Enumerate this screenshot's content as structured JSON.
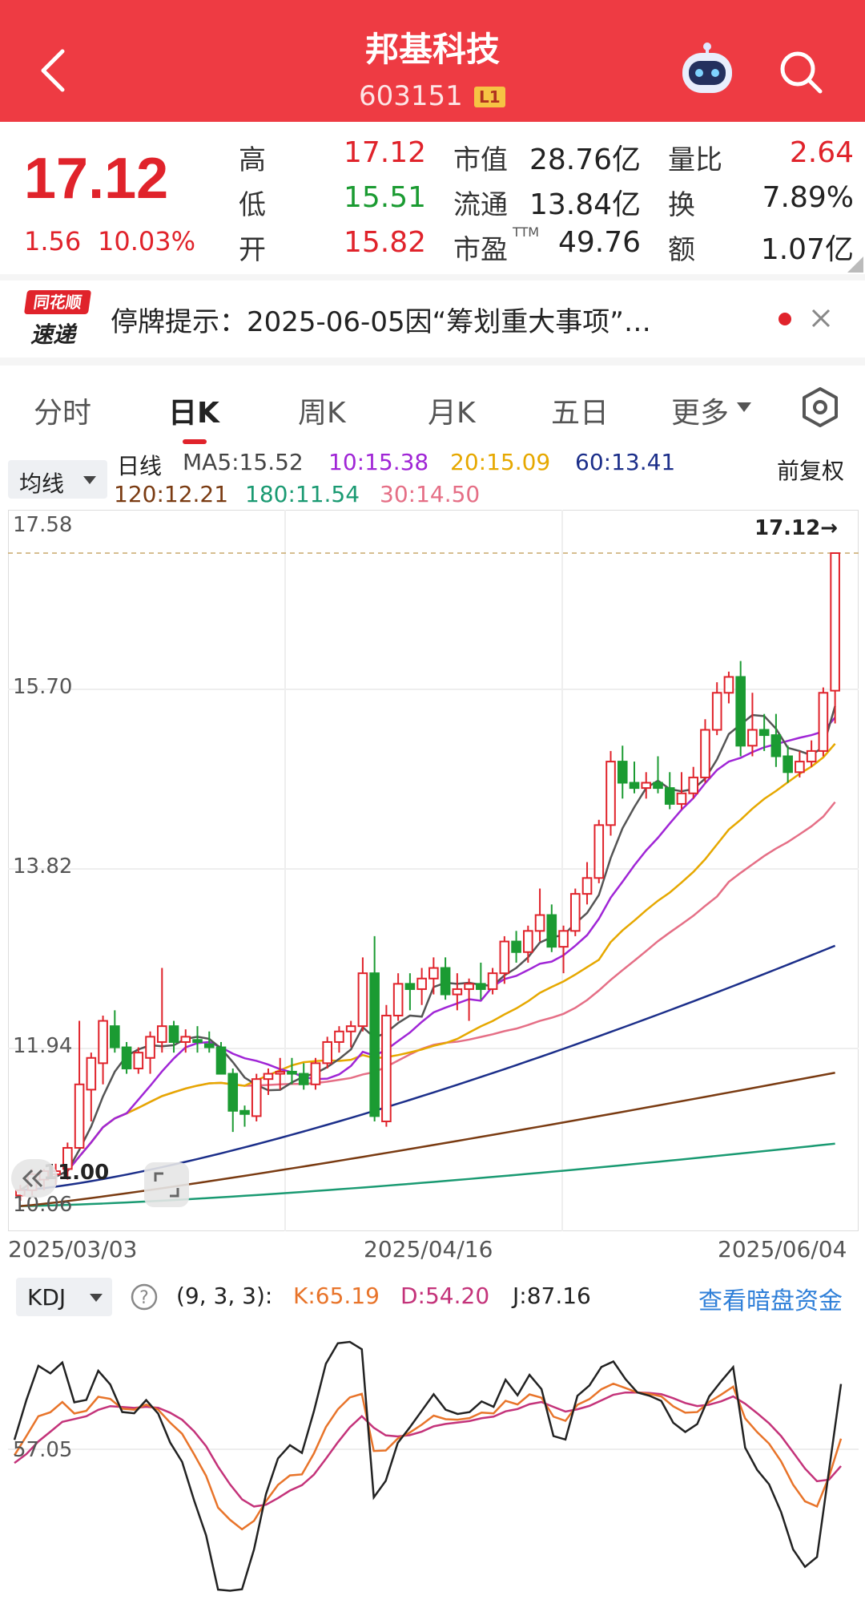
{
  "header": {
    "title": "邦基科技",
    "code": "603151",
    "badge": "L1"
  },
  "quote": {
    "price": "17.12",
    "change": "1.56",
    "change_pct": "10.03%",
    "rows": [
      {
        "l1": "高",
        "v1": "17.12",
        "l2": "市值",
        "v2": "28.76亿",
        "l3": "量比",
        "v3": "2.64"
      },
      {
        "l1": "低",
        "v1": "15.51",
        "l2": "流通",
        "v2": "13.84亿",
        "l3": "换",
        "v3": "7.89%"
      },
      {
        "l1": "开",
        "v1": "15.82",
        "l2": "市盈",
        "v2": "49.76",
        "l3": "额",
        "v3": "1.07亿"
      }
    ],
    "ttm": "TTM"
  },
  "news": {
    "logo_top": "同花顺",
    "logo_bottom": "速递",
    "text": "停牌提示：2025-06-05因“筹划重大事项”…"
  },
  "tabs": [
    "分时",
    "日K",
    "周K",
    "月K",
    "五日",
    "更多"
  ],
  "active_tab": "日K",
  "ma": {
    "dropdown": "均线",
    "label": "日线",
    "right": "前复权",
    "ma5": "MA5:15.52",
    "ma10": "10:15.38",
    "ma20": "20:15.09",
    "ma60": "60:13.41",
    "ma120": "120:12.21",
    "ma180": "180:11.54",
    "ma30": "30:14.50"
  },
  "price_axis": {
    "y1": "17.58",
    "y2": "15.70",
    "y3": "13.82",
    "y4": "11.94",
    "y5": "10.06",
    "low_marker": "11.00",
    "high_marker": "17.12→"
  },
  "dates": {
    "d1": "2025/03/03",
    "d2": "2025/04/16",
    "d3": "2025/06/04"
  },
  "kdj": {
    "dropdown": "KDJ",
    "params": "(9, 3, 3):",
    "k": "K:65.19",
    "d": "D:54.20",
    "j": "J:87.16",
    "link": "查看暗盘资金",
    "axis": "57.05"
  },
  "colors": {
    "red": "#e0232b",
    "green": "#1b9b32",
    "header": "#ee3b43"
  },
  "chart_data": [
    {
      "type": "candlestick",
      "x_start": "2025/03/03",
      "x_mid": "2025/04/16",
      "x_end": "2025/06/04",
      "ylim": [
        10.06,
        17.58
      ],
      "ohlc": [
        [
          11.05,
          11.15,
          11.0,
          11.1
        ],
        [
          11.1,
          11.3,
          11.05,
          11.25
        ],
        [
          11.2,
          11.3,
          11.1,
          11.28
        ],
        [
          11.25,
          11.35,
          11.15,
          11.28
        ],
        [
          11.3,
          11.55,
          11.2,
          11.5
        ],
        [
          11.5,
          12.7,
          11.5,
          12.1
        ],
        [
          12.05,
          12.4,
          11.75,
          12.35
        ],
        [
          12.3,
          12.75,
          12.1,
          12.7
        ],
        [
          12.65,
          12.8,
          12.4,
          12.45
        ],
        [
          12.45,
          12.5,
          12.2,
          12.25
        ],
        [
          12.25,
          12.45,
          12.2,
          12.4
        ],
        [
          12.35,
          12.6,
          12.2,
          12.55
        ],
        [
          12.5,
          13.2,
          12.4,
          12.65
        ],
        [
          12.65,
          12.7,
          12.4,
          12.5
        ],
        [
          12.5,
          12.62,
          12.4,
          12.55
        ],
        [
          12.52,
          12.65,
          12.4,
          12.5
        ],
        [
          12.48,
          12.6,
          12.4,
          12.45
        ],
        [
          12.45,
          12.5,
          12.2,
          12.2
        ],
        [
          12.2,
          12.25,
          11.65,
          11.85
        ],
        [
          11.85,
          11.9,
          11.7,
          11.82
        ],
        [
          11.8,
          12.2,
          11.75,
          12.15
        ],
        [
          12.15,
          12.25,
          12.0,
          12.2
        ],
        [
          12.2,
          12.35,
          12.05,
          12.22
        ],
        [
          12.22,
          12.35,
          12.1,
          12.2
        ],
        [
          12.2,
          12.3,
          12.05,
          12.1
        ],
        [
          12.1,
          12.35,
          12.05,
          12.3
        ],
        [
          12.3,
          12.55,
          12.25,
          12.5
        ],
        [
          12.5,
          12.65,
          12.4,
          12.6
        ],
        [
          12.6,
          12.7,
          12.45,
          12.65
        ],
        [
          12.65,
          13.3,
          12.6,
          13.15
        ],
        [
          13.15,
          13.5,
          11.75,
          11.8
        ],
        [
          11.75,
          12.85,
          11.7,
          12.75
        ],
        [
          12.75,
          13.15,
          12.7,
          13.05
        ],
        [
          13.05,
          13.15,
          12.8,
          13.0
        ],
        [
          13.0,
          13.2,
          12.85,
          13.1
        ],
        [
          13.1,
          13.3,
          12.95,
          13.2
        ],
        [
          13.2,
          13.3,
          12.9,
          12.95
        ],
        [
          12.95,
          13.15,
          12.8,
          13.0
        ],
        [
          13.0,
          13.1,
          12.7,
          13.05
        ],
        [
          13.05,
          13.25,
          12.9,
          13.0
        ],
        [
          13.0,
          13.2,
          12.95,
          13.15
        ],
        [
          13.15,
          13.5,
          13.05,
          13.45
        ],
        [
          13.45,
          13.55,
          13.25,
          13.35
        ],
        [
          13.35,
          13.6,
          13.25,
          13.55
        ],
        [
          13.55,
          13.95,
          13.45,
          13.7
        ],
        [
          13.7,
          13.8,
          13.35,
          13.4
        ],
        [
          13.4,
          13.6,
          13.15,
          13.55
        ],
        [
          13.55,
          13.95,
          13.5,
          13.9
        ],
        [
          13.9,
          14.2,
          13.8,
          14.05
        ],
        [
          14.05,
          14.6,
          14.0,
          14.55
        ],
        [
          14.55,
          15.25,
          14.45,
          15.15
        ],
        [
          15.15,
          15.3,
          14.8,
          14.95
        ],
        [
          14.95,
          15.15,
          14.85,
          14.9
        ],
        [
          14.9,
          15.05,
          14.8,
          14.95
        ],
        [
          14.95,
          15.2,
          14.85,
          14.9
        ],
        [
          14.9,
          15.05,
          14.7,
          14.75
        ],
        [
          14.75,
          15.05,
          14.7,
          14.85
        ],
        [
          14.85,
          15.1,
          14.8,
          15.0
        ],
        [
          15.0,
          15.55,
          14.95,
          15.45
        ],
        [
          15.45,
          15.9,
          15.4,
          15.8
        ],
        [
          15.8,
          16.0,
          15.7,
          15.95
        ],
        [
          15.95,
          16.1,
          15.2,
          15.3
        ],
        [
          15.3,
          15.8,
          15.2,
          15.45
        ],
        [
          15.45,
          15.6,
          15.25,
          15.4
        ],
        [
          15.4,
          15.6,
          15.1,
          15.2
        ],
        [
          15.2,
          15.3,
          14.95,
          15.05
        ],
        [
          15.05,
          15.25,
          15.0,
          15.15
        ],
        [
          15.15,
          15.35,
          15.1,
          15.25
        ],
        [
          15.25,
          15.85,
          15.2,
          15.8
        ],
        [
          15.82,
          17.12,
          15.51,
          17.12
        ]
      ],
      "ma_values": {
        "MA5": 15.52,
        "MA10": 15.38,
        "MA20": 15.09,
        "MA60": 13.41,
        "MA120": 12.21,
        "MA180": 11.54,
        "MA30": 14.5
      }
    },
    {
      "type": "line",
      "title": "KDJ (9, 3, 3)",
      "series": [
        {
          "name": "K",
          "last": 65.19
        },
        {
          "name": "D",
          "last": 54.2
        },
        {
          "name": "J",
          "last": 87.16
        }
      ]
    }
  ]
}
